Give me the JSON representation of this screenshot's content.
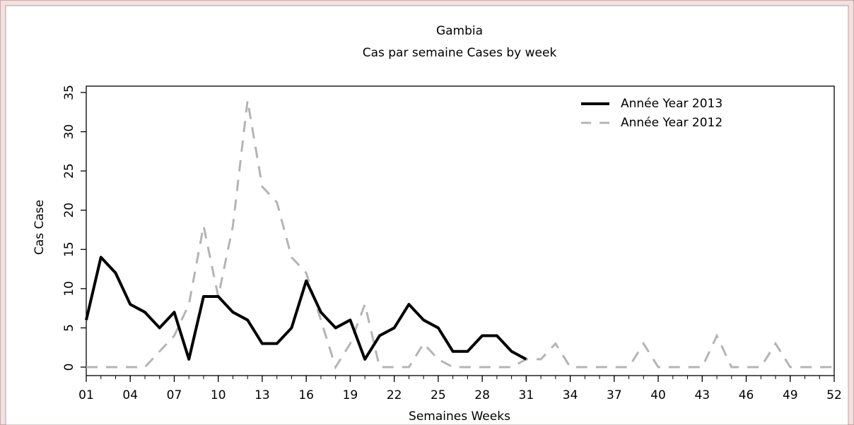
{
  "chart_data": {
    "type": "line",
    "title": "Gambia",
    "subtitle": "Cas par semaine Cases by week",
    "x_label": "Semaines Weeks",
    "y_label": "Cas Case",
    "x": [
      1,
      2,
      3,
      4,
      5,
      6,
      7,
      8,
      9,
      10,
      11,
      12,
      13,
      14,
      15,
      16,
      17,
      18,
      19,
      20,
      21,
      22,
      23,
      24,
      25,
      26,
      27,
      28,
      29,
      30,
      31,
      32,
      33,
      34,
      35,
      36,
      37,
      38,
      39,
      40,
      41,
      42,
      43,
      44,
      45,
      46,
      47,
      48,
      49,
      50,
      51,
      52
    ],
    "xlim": [
      1,
      52
    ],
    "xticks": [
      {
        "value": 1,
        "label": "01"
      },
      {
        "value": 4,
        "label": "04"
      },
      {
        "value": 7,
        "label": "07"
      },
      10,
      13,
      16,
      19,
      22,
      25,
      28,
      31,
      34,
      37,
      40,
      43,
      46,
      49,
      52
    ],
    "ylim": [
      0,
      35
    ],
    "yticks": [
      0,
      5,
      10,
      15,
      20,
      25,
      30,
      35
    ],
    "grid": false,
    "legend": "upper right",
    "series": [
      {
        "name": "Année Year 2013",
        "color": "#000000",
        "style": "solid",
        "values": [
          6,
          14,
          12,
          8,
          7,
          5,
          7,
          1,
          9,
          9,
          7,
          6,
          3,
          3,
          5,
          11,
          7,
          5,
          6,
          1,
          4,
          5,
          8,
          6,
          5,
          2,
          2,
          4,
          4,
          2,
          1,
          null,
          null,
          null,
          null,
          null,
          null,
          null,
          null,
          null,
          null,
          null,
          null,
          null,
          null,
          null,
          null,
          null,
          null,
          null,
          null,
          null
        ]
      },
      {
        "name": "Année Year 2012",
        "color": "#b4b4b4",
        "style": "dashed",
        "values": [
          0,
          0,
          0,
          0,
          0,
          2,
          4,
          8,
          18,
          9,
          18,
          34,
          23,
          21,
          14,
          12,
          6,
          0,
          3,
          8,
          0,
          0,
          0,
          3,
          1,
          0,
          0,
          0,
          0,
          0,
          1,
          1,
          3,
          0,
          0,
          0,
          0,
          0,
          3,
          0,
          0,
          0,
          0,
          4,
          0,
          0,
          0,
          3,
          0,
          0,
          0,
          0
        ]
      }
    ]
  }
}
